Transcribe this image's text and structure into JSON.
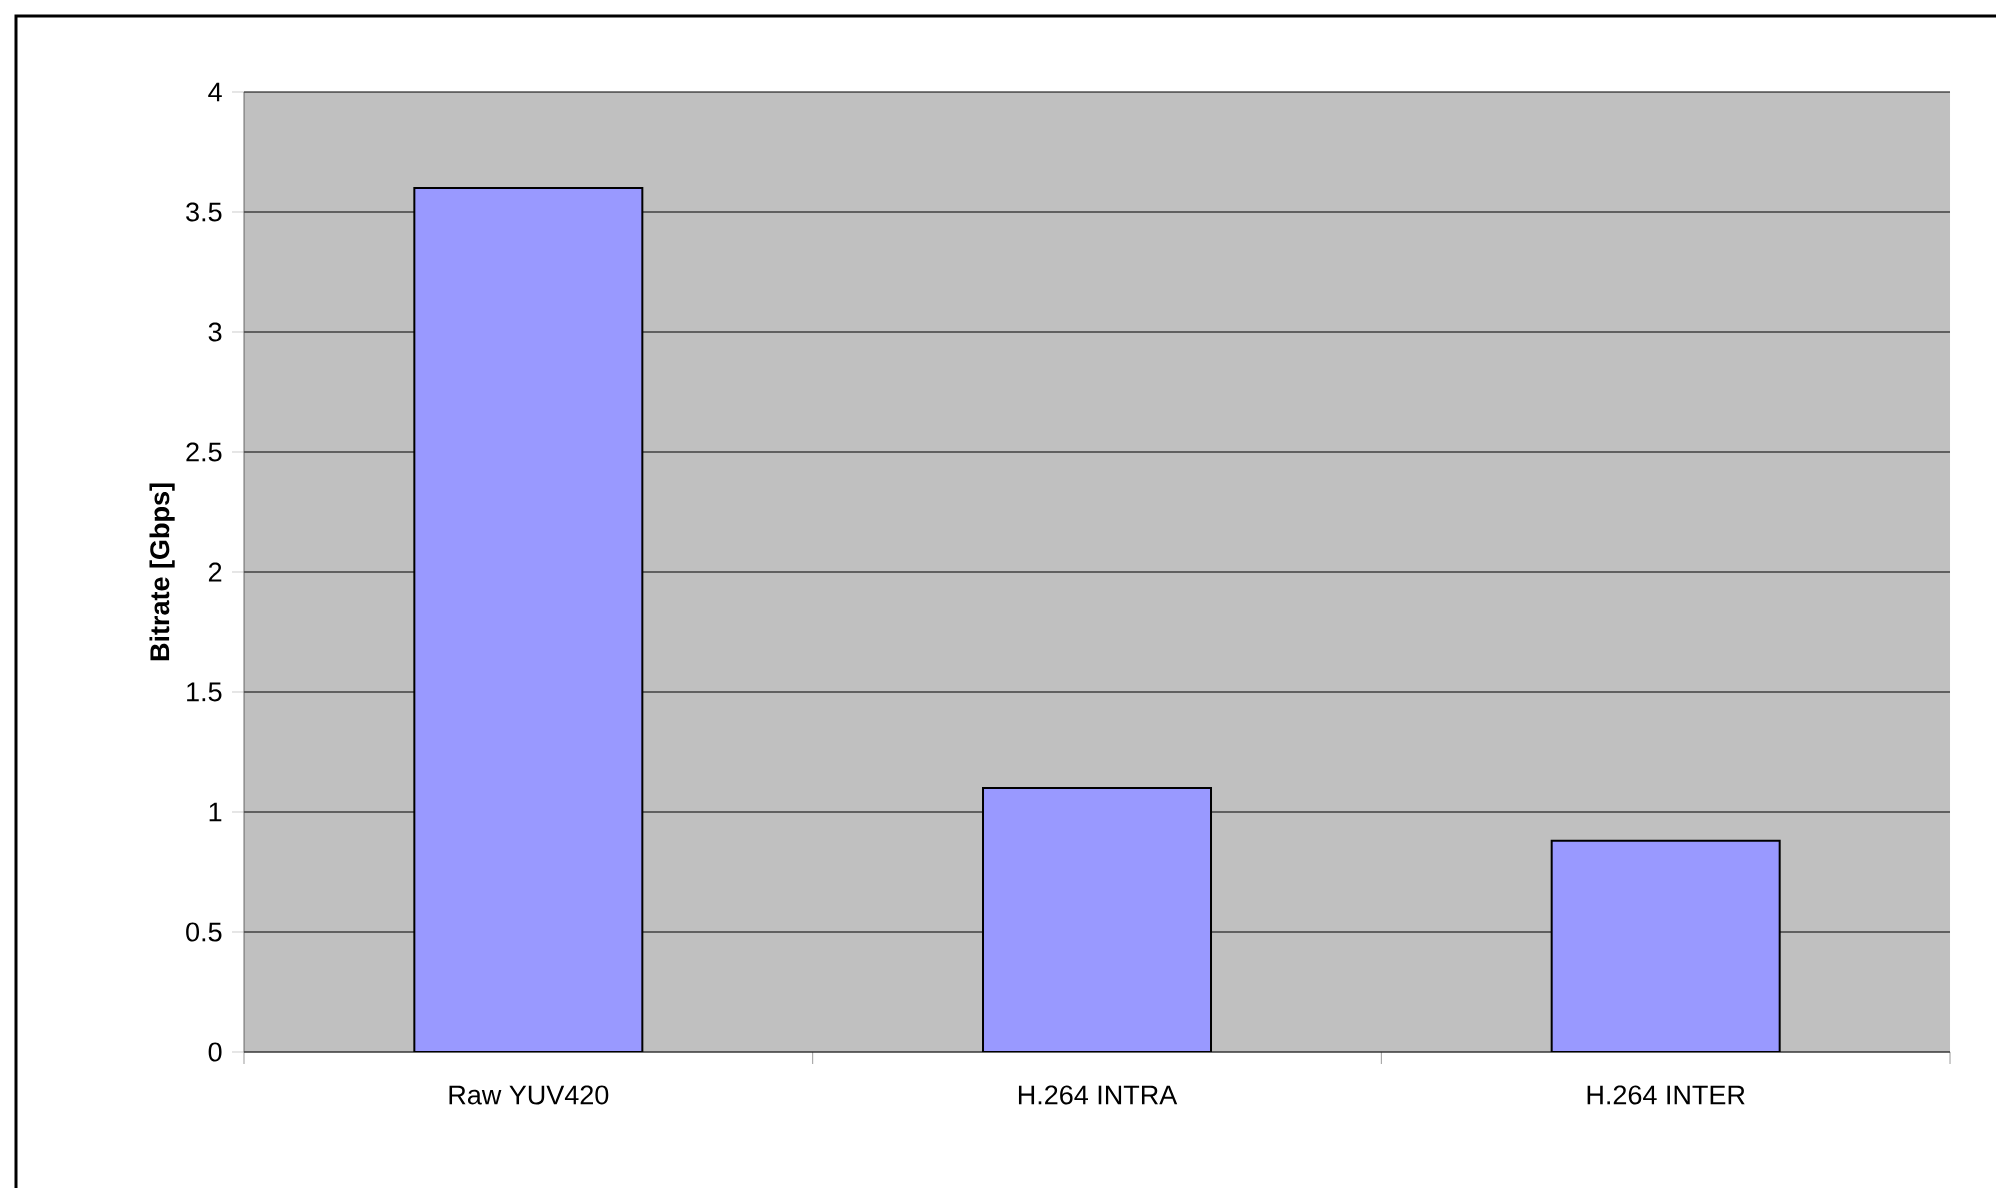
{
  "chart_data": {
    "type": "bar",
    "ylabel": "Bitrate [Gbps]",
    "categories": [
      "Raw  YUV420",
      "H.264 INTRA",
      "H.264 INTER"
    ],
    "values": [
      3.6,
      1.1,
      0.88
    ],
    "color": "#9999ff",
    "ylim": [
      0,
      4
    ],
    "yticks": [
      0,
      0.5,
      1,
      1.5,
      2,
      2.5,
      3,
      3.5,
      4
    ],
    "grid": "y"
  }
}
